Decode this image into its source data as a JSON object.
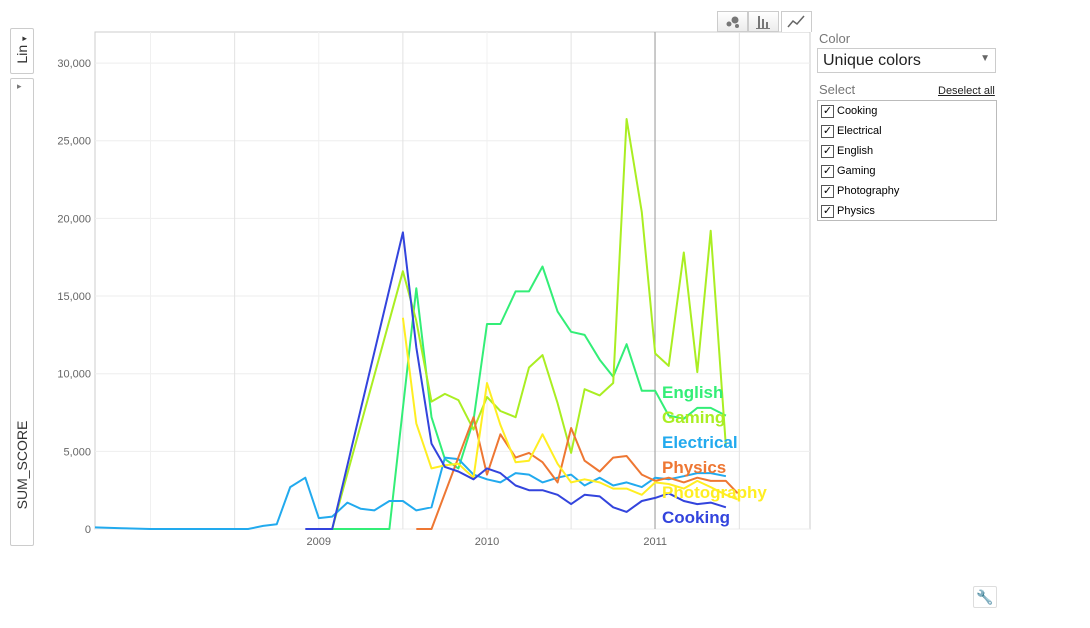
{
  "side": {
    "scale_tab": "Lin",
    "scale_arrow": "▾",
    "collapse_arrow": "▸",
    "y_field": "SUM_SCORE"
  },
  "panel": {
    "color_label": "Color",
    "color_value": "Unique colors",
    "select_label": "Select",
    "deselect_all": "Deselect all",
    "items": [
      {
        "label": "Cooking",
        "checked": true
      },
      {
        "label": "Electrical",
        "checked": true
      },
      {
        "label": "English",
        "checked": true
      },
      {
        "label": "Gaming",
        "checked": true
      },
      {
        "label": "Photography",
        "checked": true
      },
      {
        "label": "Physics",
        "checked": true
      }
    ]
  },
  "view_buttons": [
    "bubble-icon",
    "bar-chart-icon",
    "line-chart-icon"
  ],
  "chart_data": {
    "type": "line",
    "title": "",
    "xlabel": "",
    "ylabel": "SUM_SCORE",
    "x_ticks": [
      "2009",
      "2010",
      "2011"
    ],
    "y_ticks": [
      "0",
      "5,000",
      "10,000",
      "15,000",
      "20,000",
      "25,000",
      "30,000"
    ],
    "ylim": [
      0,
      32000
    ],
    "xlim": [
      2008.17,
      2012.42
    ],
    "grid": true,
    "legend": "end-of-line labels",
    "series": [
      {
        "name": "English",
        "color": "#33ee77",
        "points": [
          [
            2009.58,
            0
          ],
          [
            2009.92,
            0
          ],
          [
            2010.08,
            15500
          ],
          [
            2010.17,
            7200
          ],
          [
            2010.25,
            4500
          ],
          [
            2010.33,
            3900
          ],
          [
            2010.42,
            7000
          ],
          [
            2010.5,
            13200
          ],
          [
            2010.58,
            13200
          ],
          [
            2010.67,
            15300
          ],
          [
            2010.75,
            15300
          ],
          [
            2010.83,
            16900
          ],
          [
            2010.92,
            14000
          ],
          [
            2011.0,
            12700
          ],
          [
            2011.08,
            12500
          ],
          [
            2011.17,
            10900
          ],
          [
            2011.25,
            9800
          ],
          [
            2011.33,
            11900
          ],
          [
            2011.42,
            8900
          ],
          [
            2011.5,
            8900
          ],
          [
            2011.58,
            7300
          ],
          [
            2011.67,
            7100
          ],
          [
            2011.75,
            7800
          ],
          [
            2011.83,
            7800
          ],
          [
            2011.92,
            7300
          ]
        ]
      },
      {
        "name": "Gaming",
        "color": "#aaee22",
        "points": [
          [
            2009.5,
            0
          ],
          [
            2009.58,
            0
          ],
          [
            2010.0,
            16600
          ],
          [
            2010.08,
            13400
          ],
          [
            2010.17,
            8200
          ],
          [
            2010.25,
            8700
          ],
          [
            2010.33,
            8300
          ],
          [
            2010.42,
            6400
          ],
          [
            2010.5,
            8500
          ],
          [
            2010.58,
            7600
          ],
          [
            2010.67,
            7200
          ],
          [
            2010.75,
            10400
          ],
          [
            2010.83,
            11200
          ],
          [
            2010.92,
            8100
          ],
          [
            2011.0,
            4900
          ],
          [
            2011.08,
            9000
          ],
          [
            2011.17,
            8600
          ],
          [
            2011.25,
            9400
          ],
          [
            2011.33,
            26400
          ],
          [
            2011.42,
            20400
          ],
          [
            2011.5,
            11300
          ],
          [
            2011.58,
            10500
          ],
          [
            2011.67,
            17800
          ],
          [
            2011.75,
            10100
          ],
          [
            2011.83,
            19200
          ],
          [
            2011.92,
            5300
          ]
        ]
      },
      {
        "name": "Electrical",
        "color": "#22aaee",
        "points": [
          [
            2008.17,
            100
          ],
          [
            2008.33,
            50
          ],
          [
            2008.5,
            0
          ],
          [
            2008.67,
            0
          ],
          [
            2008.83,
            0
          ],
          [
            2009.0,
            0
          ],
          [
            2009.08,
            0
          ],
          [
            2009.17,
            200
          ],
          [
            2009.25,
            300
          ],
          [
            2009.33,
            2700
          ],
          [
            2009.42,
            3300
          ],
          [
            2009.5,
            700
          ],
          [
            2009.58,
            800
          ],
          [
            2009.67,
            1700
          ],
          [
            2009.75,
            1300
          ],
          [
            2009.83,
            1200
          ],
          [
            2009.92,
            1800
          ],
          [
            2010.0,
            1800
          ],
          [
            2010.08,
            1200
          ],
          [
            2010.17,
            1400
          ],
          [
            2010.25,
            4600
          ],
          [
            2010.33,
            4500
          ],
          [
            2010.42,
            3500
          ],
          [
            2010.5,
            3200
          ],
          [
            2010.58,
            3000
          ],
          [
            2010.67,
            3600
          ],
          [
            2010.75,
            3500
          ],
          [
            2010.83,
            3000
          ],
          [
            2010.92,
            3300
          ],
          [
            2011.0,
            3500
          ],
          [
            2011.08,
            2800
          ],
          [
            2011.17,
            3300
          ],
          [
            2011.25,
            2800
          ],
          [
            2011.33,
            3000
          ],
          [
            2011.42,
            2700
          ],
          [
            2011.5,
            3300
          ],
          [
            2011.58,
            3200
          ],
          [
            2011.67,
            3400
          ],
          [
            2011.75,
            3600
          ],
          [
            2011.83,
            3600
          ],
          [
            2011.92,
            3400
          ]
        ]
      },
      {
        "name": "Physics",
        "color": "#ee7733",
        "points": [
          [
            2010.08,
            0
          ],
          [
            2010.17,
            0
          ],
          [
            2010.42,
            7200
          ],
          [
            2010.5,
            3500
          ],
          [
            2010.58,
            6100
          ],
          [
            2010.67,
            4600
          ],
          [
            2010.75,
            4900
          ],
          [
            2010.83,
            4300
          ],
          [
            2010.92,
            3000
          ],
          [
            2011.0,
            6500
          ],
          [
            2011.08,
            4400
          ],
          [
            2011.17,
            3700
          ],
          [
            2011.25,
            4600
          ],
          [
            2011.33,
            4700
          ],
          [
            2011.42,
            3500
          ],
          [
            2011.5,
            3100
          ],
          [
            2011.58,
            3300
          ],
          [
            2011.67,
            3000
          ],
          [
            2011.75,
            3300
          ],
          [
            2011.83,
            3100
          ],
          [
            2011.92,
            3100
          ],
          [
            2011.99,
            2300
          ]
        ]
      },
      {
        "name": "Photography",
        "color": "#ffee22",
        "points": [
          [
            2010.0,
            13600
          ],
          [
            2010.08,
            6800
          ],
          [
            2010.17,
            3900
          ],
          [
            2010.25,
            4100
          ],
          [
            2010.33,
            4200
          ],
          [
            2010.42,
            3300
          ],
          [
            2010.5,
            9400
          ],
          [
            2010.58,
            6700
          ],
          [
            2010.67,
            4300
          ],
          [
            2010.75,
            4400
          ],
          [
            2010.83,
            6100
          ],
          [
            2010.92,
            4200
          ],
          [
            2011.0,
            3000
          ],
          [
            2011.08,
            3200
          ],
          [
            2011.17,
            3000
          ],
          [
            2011.25,
            2600
          ],
          [
            2011.33,
            2600
          ],
          [
            2011.42,
            2200
          ],
          [
            2011.5,
            3000
          ],
          [
            2011.58,
            2900
          ],
          [
            2011.67,
            2600
          ],
          [
            2011.75,
            3100
          ],
          [
            2011.83,
            2700
          ],
          [
            2011.92,
            2200
          ],
          [
            2011.99,
            1900
          ]
        ]
      },
      {
        "name": "Cooking",
        "color": "#3344dd",
        "points": [
          [
            2009.42,
            0
          ],
          [
            2009.58,
            0
          ],
          [
            2010.0,
            19100
          ],
          [
            2010.08,
            11700
          ],
          [
            2010.17,
            5500
          ],
          [
            2010.25,
            4000
          ],
          [
            2010.33,
            3700
          ],
          [
            2010.42,
            3200
          ],
          [
            2010.5,
            3900
          ],
          [
            2010.58,
            3600
          ],
          [
            2010.67,
            2800
          ],
          [
            2010.75,
            2500
          ],
          [
            2010.83,
            2500
          ],
          [
            2010.92,
            2200
          ],
          [
            2011.0,
            1600
          ],
          [
            2011.08,
            2200
          ],
          [
            2011.17,
            2100
          ],
          [
            2011.25,
            1400
          ],
          [
            2011.33,
            1100
          ],
          [
            2011.42,
            1800
          ],
          [
            2011.5,
            2000
          ],
          [
            2011.58,
            2300
          ],
          [
            2011.67,
            1800
          ],
          [
            2011.75,
            1600
          ],
          [
            2011.83,
            1700
          ],
          [
            2011.92,
            1400
          ]
        ]
      }
    ],
    "end_labels_order": [
      "English",
      "Gaming",
      "Electrical",
      "Physics",
      "Photography",
      "Cooking"
    ]
  }
}
